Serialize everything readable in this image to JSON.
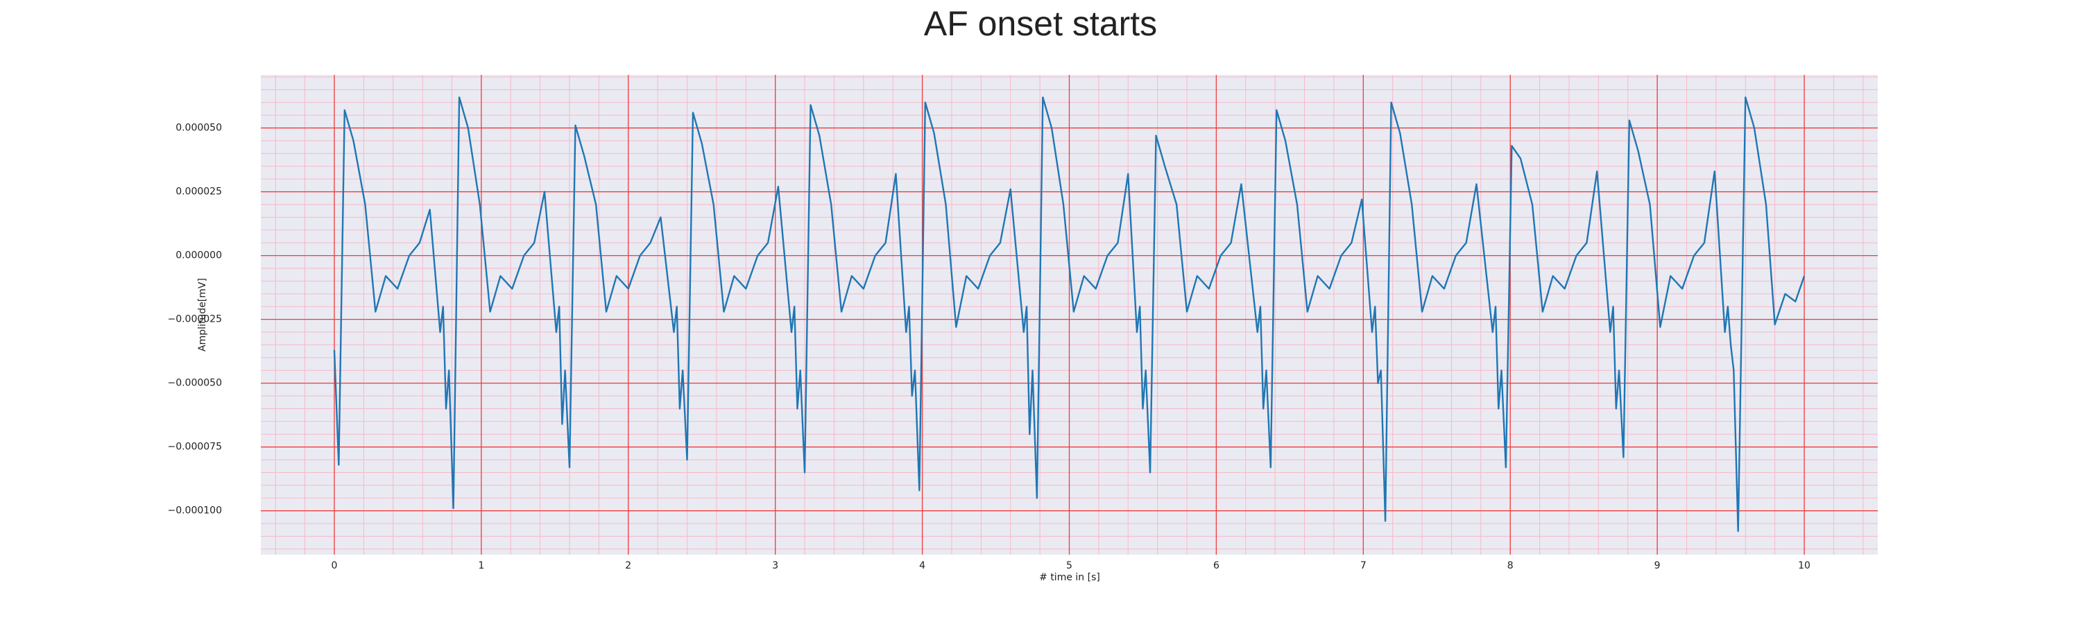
{
  "chart_data": {
    "type": "line",
    "title": "AF onset starts",
    "xlabel": "# time in [s]",
    "ylabel": "Amplitude[mV]",
    "color": "#1f77b4",
    "grid": true,
    "minor_grid": true,
    "xlim": [
      -0.5,
      10.5
    ],
    "ylim": [
      -0.0001172,
      7.08e-05
    ],
    "xticks": [
      0,
      1,
      2,
      3,
      4,
      5,
      6,
      7,
      8,
      9,
      10
    ],
    "yticks": [
      {
        "value": -0.0001,
        "label": "−0.000100"
      },
      {
        "value": -7.5e-05,
        "label": "−0.000075"
      },
      {
        "value": -5e-05,
        "label": "−0.000050"
      },
      {
        "value": -2.5e-05,
        "label": "−0.000025"
      },
      {
        "value": 0,
        "label": "0.000000"
      },
      {
        "value": 2.5e-05,
        "label": "0.000025"
      },
      {
        "value": 5e-05,
        "label": "0.000050"
      }
    ],
    "x": [
      0,
      0.03,
      0.07,
      0.13,
      0.21,
      0.28,
      0.35,
      0.43,
      0.51,
      0.58,
      0.65,
      0.72,
      0.74,
      0.76,
      0.78,
      0.81,
      0.85,
      0.91,
      0.99,
      1.06,
      1.13,
      1.21,
      1.29,
      1.36,
      1.43,
      1.51,
      1.53,
      1.55,
      1.57,
      1.6,
      1.64,
      1.7,
      1.78,
      1.85,
      1.92,
      2.0,
      2.08,
      2.15,
      2.22,
      2.31,
      2.33,
      2.35,
      2.37,
      2.4,
      2.44,
      2.5,
      2.58,
      2.65,
      2.72,
      2.8,
      2.88,
      2.95,
      3.02,
      3.11,
      3.13,
      3.15,
      3.17,
      3.2,
      3.24,
      3.3,
      3.38,
      3.45,
      3.52,
      3.6,
      3.68,
      3.75,
      3.82,
      3.89,
      3.91,
      3.93,
      3.95,
      3.98,
      4.02,
      4.08,
      4.16,
      4.23,
      4.3,
      4.38,
      4.46,
      4.53,
      4.6,
      4.69,
      4.71,
      4.73,
      4.75,
      4.78,
      4.82,
      4.88,
      4.96,
      5.03,
      5.1,
      5.18,
      5.26,
      5.33,
      5.4,
      5.46,
      5.48,
      5.5,
      5.52,
      5.55,
      5.59,
      5.65,
      5.73,
      5.8,
      5.87,
      5.95,
      6.03,
      6.1,
      6.17,
      6.28,
      6.3,
      6.32,
      6.34,
      6.37,
      6.41,
      6.47,
      6.55,
      6.62,
      6.69,
      6.77,
      6.85,
      6.92,
      6.99,
      7.06,
      7.08,
      7.1,
      7.12,
      7.15,
      7.19,
      7.25,
      7.33,
      7.4,
      7.47,
      7.55,
      7.63,
      7.7,
      7.77,
      7.88,
      7.9,
      7.92,
      7.94,
      7.97,
      8.01,
      8.07,
      8.15,
      8.22,
      8.29,
      8.37,
      8.45,
      8.52,
      8.59,
      8.68,
      8.7,
      8.72,
      8.74,
      8.77,
      8.81,
      8.87,
      8.95,
      9.02,
      9.09,
      9.17,
      9.25,
      9.32,
      9.39,
      9.46,
      9.48,
      9.5,
      9.52,
      9.55,
      9.6,
      9.66,
      9.74,
      9.8,
      9.87,
      9.94,
      10.0
    ],
    "values": [
      -3.7e-05,
      -8.2e-05,
      5.7e-05,
      4.5e-05,
      2e-05,
      -2.2e-05,
      -8e-06,
      -1.3e-05,
      0,
      5e-06,
      1.8e-05,
      -3e-05,
      -2e-05,
      -6e-05,
      -4.5e-05,
      -9.9e-05,
      6.2e-05,
      5e-05,
      2e-05,
      -2.2e-05,
      -8e-06,
      -1.3e-05,
      0,
      5e-06,
      2.5e-05,
      -3e-05,
      -2e-05,
      -6.6e-05,
      -4.5e-05,
      -8.3e-05,
      5.1e-05,
      3.9e-05,
      2e-05,
      -2.2e-05,
      -8e-06,
      -1.3e-05,
      0,
      5e-06,
      1.5e-05,
      -3e-05,
      -2e-05,
      -6e-05,
      -4.5e-05,
      -8e-05,
      5.6e-05,
      4.4e-05,
      2e-05,
      -2.2e-05,
      -8e-06,
      -1.3e-05,
      0,
      5e-06,
      2.7e-05,
      -3e-05,
      -2e-05,
      -6e-05,
      -4.5e-05,
      -8.5e-05,
      5.9e-05,
      4.7e-05,
      2e-05,
      -2.2e-05,
      -8e-06,
      -1.3e-05,
      0,
      5e-06,
      3.2e-05,
      -3e-05,
      -2e-05,
      -5.5e-05,
      -4.5e-05,
      -9.2e-05,
      6e-05,
      4.8e-05,
      2e-05,
      -2.8e-05,
      -8e-06,
      -1.3e-05,
      0,
      5e-06,
      2.6e-05,
      -3e-05,
      -2e-05,
      -7e-05,
      -4.5e-05,
      -9.5e-05,
      6.2e-05,
      5e-05,
      2e-05,
      -2.2e-05,
      -8e-06,
      -1.3e-05,
      0,
      5e-06,
      3.2e-05,
      -3e-05,
      -2e-05,
      -6e-05,
      -4.5e-05,
      -8.5e-05,
      4.7e-05,
      3.5e-05,
      2e-05,
      -2.2e-05,
      -8e-06,
      -1.3e-05,
      0,
      5e-06,
      2.8e-05,
      -3e-05,
      -2e-05,
      -6e-05,
      -4.5e-05,
      -8.3e-05,
      5.7e-05,
      4.5e-05,
      2e-05,
      -2.2e-05,
      -8e-06,
      -1.3e-05,
      0,
      5e-06,
      2.2e-05,
      -3e-05,
      -2e-05,
      -5e-05,
      -4.5e-05,
      -0.000104,
      6e-05,
      4.8e-05,
      2e-05,
      -2.2e-05,
      -8e-06,
      -1.3e-05,
      0,
      5e-06,
      2.8e-05,
      -3e-05,
      -2e-05,
      -6e-05,
      -4.5e-05,
      -8.3e-05,
      4.3e-05,
      3.8e-05,
      2e-05,
      -2.2e-05,
      -8e-06,
      -1.3e-05,
      0,
      5e-06,
      3.3e-05,
      -3e-05,
      -2e-05,
      -6e-05,
      -4.5e-05,
      -7.9e-05,
      5.3e-05,
      4.1e-05,
      2e-05,
      -2.8e-05,
      -8e-06,
      -1.3e-05,
      0,
      5e-06,
      3.3e-05,
      -3e-05,
      -2e-05,
      -3.5e-05,
      -4.5e-05,
      -0.000108,
      6.2e-05,
      5e-05,
      2e-05,
      -2.7e-05,
      -1.5e-05,
      -1.8e-05,
      -8e-06
    ]
  }
}
